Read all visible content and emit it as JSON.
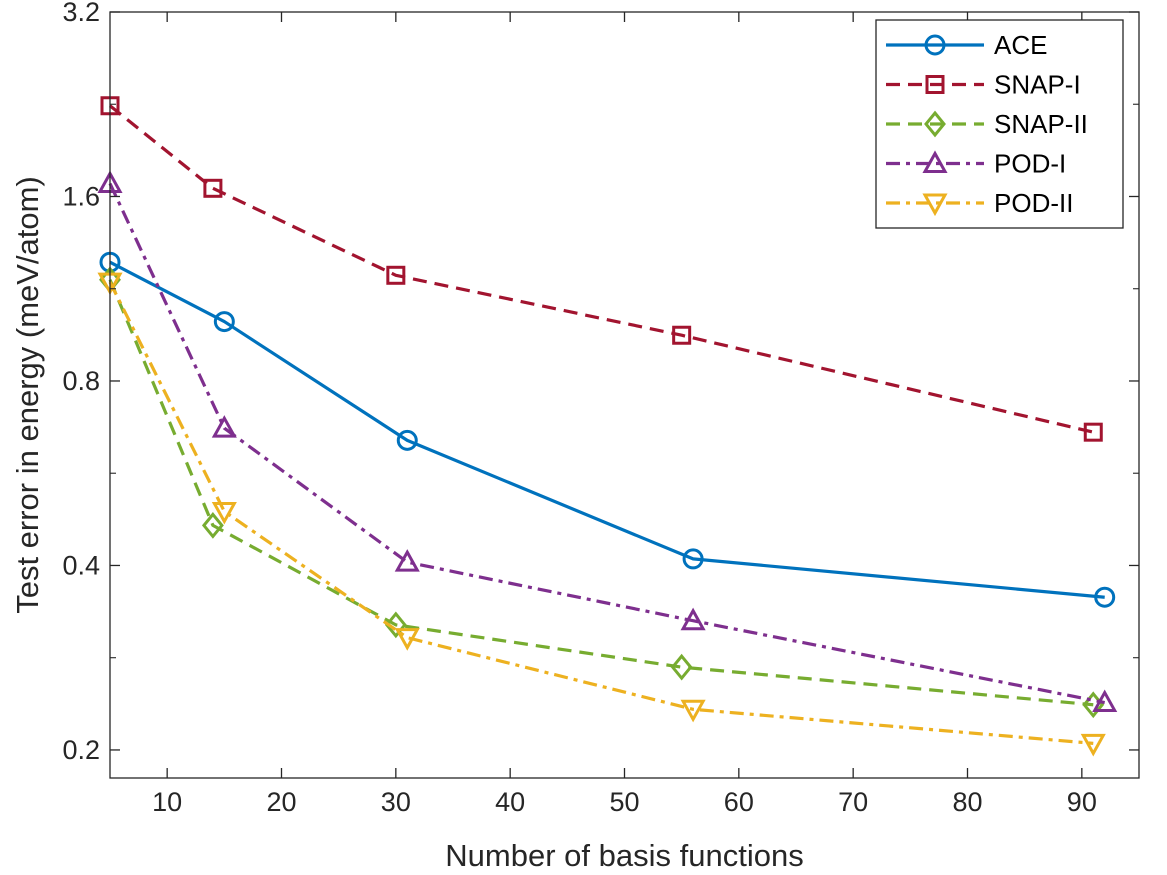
{
  "chart_data": {
    "type": "line",
    "title": "",
    "xlabel": "Number of basis functions",
    "ylabel": "Test error in energy (meV/atom)",
    "xlim": [
      5,
      95
    ],
    "ylim": [
      0.18,
      3.2
    ],
    "yscale": "log",
    "grid": false,
    "legend_position": "top-right",
    "x_ticks": [
      10,
      20,
      30,
      40,
      50,
      60,
      70,
      80,
      90
    ],
    "y_ticks": [
      0.2,
      0.4,
      0.8,
      1.6,
      3.2
    ],
    "x_tick_labels": [
      "10",
      "20",
      "30",
      "40",
      "50",
      "60",
      "70",
      "80",
      "90"
    ],
    "y_tick_labels": [
      "0.2",
      "0.4",
      "0.8",
      "1.6",
      "3.2"
    ],
    "series": [
      {
        "name": "ACE",
        "color": "#0072BD",
        "line": "solid",
        "marker": "circle",
        "x": [
          5,
          15,
          31,
          56,
          92
        ],
        "y": [
          1.25,
          1.0,
          0.64,
          0.41,
          0.355
        ]
      },
      {
        "name": "SNAP-I",
        "color": "#A2142F",
        "line": "dashed",
        "marker": "square",
        "x": [
          5,
          14,
          30,
          55,
          91
        ],
        "y": [
          2.25,
          1.65,
          1.19,
          0.95,
          0.66
        ]
      },
      {
        "name": "SNAP-II",
        "color": "#77AC30",
        "line": "dashed",
        "marker": "diamond",
        "x": [
          5,
          14,
          30,
          55,
          91
        ],
        "y": [
          1.17,
          0.465,
          0.32,
          0.273,
          0.237
        ]
      },
      {
        "name": "POD-I",
        "color": "#7E2F8E",
        "line": "dashdot",
        "marker": "triangle-up",
        "x": [
          5,
          15,
          31,
          56,
          92
        ],
        "y": [
          1.68,
          0.67,
          0.405,
          0.325,
          0.239
        ]
      },
      {
        "name": "POD-II",
        "color": "#EDB120",
        "line": "dashdot",
        "marker": "triangle-down",
        "x": [
          5,
          15,
          31,
          56,
          91
        ],
        "y": [
          1.16,
          0.49,
          0.305,
          0.233,
          0.205
        ]
      }
    ]
  }
}
